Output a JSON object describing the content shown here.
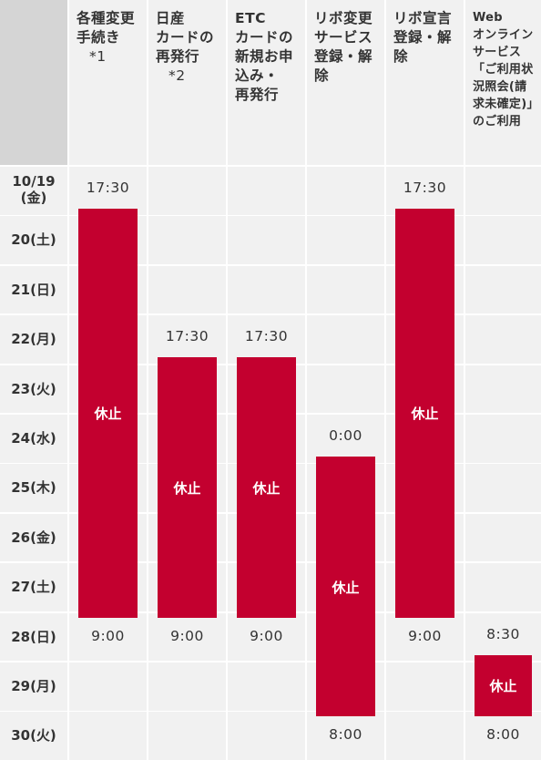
{
  "columns": [
    {
      "title": "各種変更\n手続き",
      "note": "*1",
      "start": "17:30",
      "end": "9:00",
      "start_row": 0,
      "end_row": 9,
      "closed": "休止"
    },
    {
      "title": "日産\nカードの\n再発行",
      "note": "*2",
      "start": "17:30",
      "end": "9:00",
      "start_row": 3,
      "end_row": 9,
      "closed": "休止"
    },
    {
      "title": "ETC\nカードの\n新規お申\n込み・\n再発行",
      "note": "",
      "start": "17:30",
      "end": "9:00",
      "start_row": 3,
      "end_row": 9,
      "closed": "休止"
    },
    {
      "title": "リボ変更\nサービス\n登録・解\n除",
      "note": "",
      "start": "0:00",
      "end": "8:00",
      "start_row": 5,
      "end_row": 11,
      "closed": "休止"
    },
    {
      "title": "リボ宣言\n登録・解\n除",
      "note": "",
      "start": "17:30",
      "end": "9:00",
      "start_row": 0,
      "end_row": 9,
      "closed": "休止"
    },
    {
      "title": "Web\nオンライン\nサービス\n「ご利用状\n況照会(請\n求未確定)」\nのご利用",
      "note": "",
      "start": "8:30",
      "end": "8:00",
      "start_row": 9,
      "end_row": 11,
      "closed": "休止"
    }
  ],
  "dates": [
    "10/19\n(金)",
    "20(土)",
    "21(日)",
    "22(月)",
    "23(火)",
    "24(水)",
    "25(木)",
    "26(金)",
    "27(土)",
    "28(日)",
    "29(月)",
    "30(火)"
  ],
  "colors": {
    "bar": "#c3002f",
    "cell": "#f1f1f1",
    "header_corner": "#d5d5d5",
    "text": "#333333"
  }
}
